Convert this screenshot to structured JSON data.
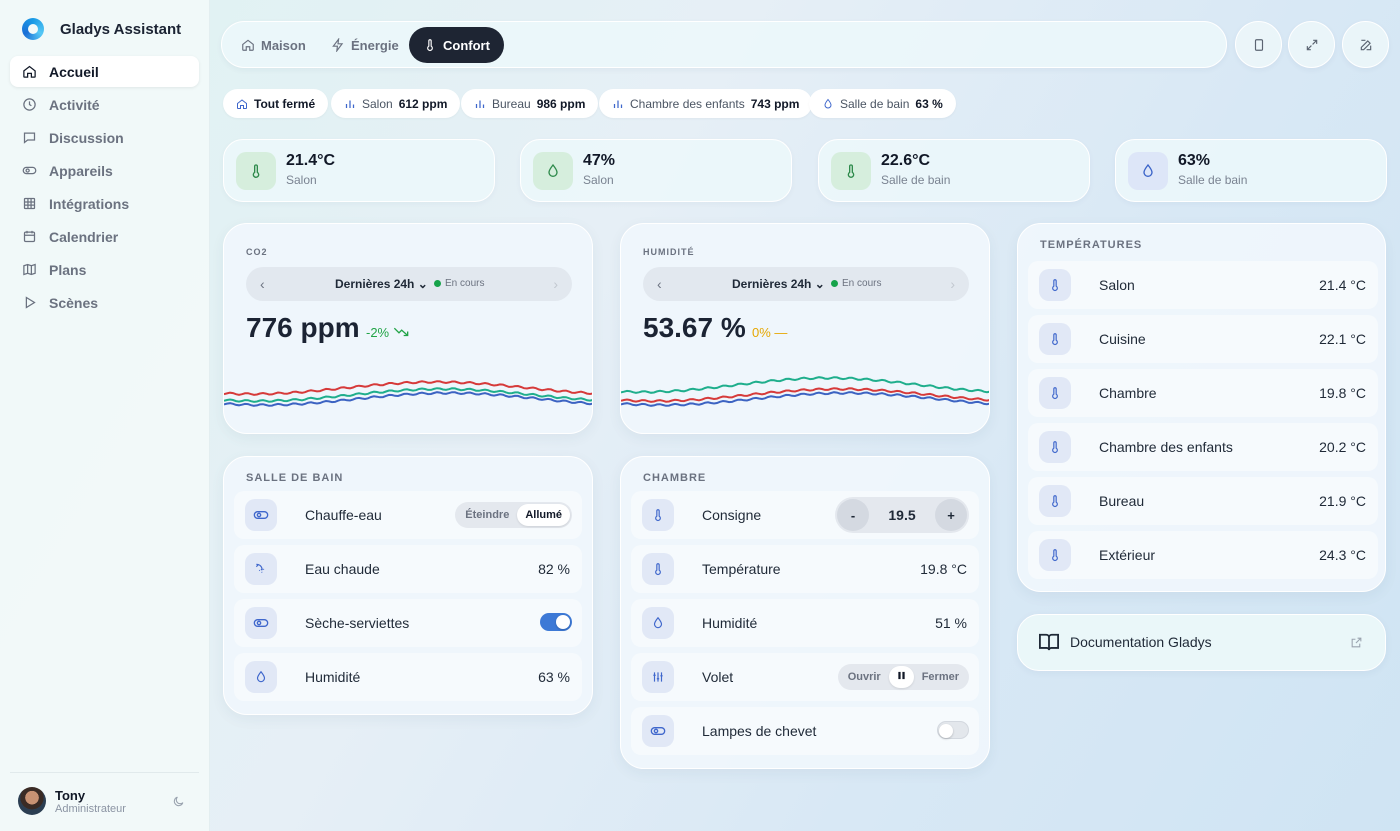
{
  "app": {
    "name": "Gladys Assistant"
  },
  "sidebar": {
    "items": [
      {
        "label": "Accueil",
        "icon": "home-icon",
        "active": true
      },
      {
        "label": "Activité",
        "icon": "clock-icon"
      },
      {
        "label": "Discussion",
        "icon": "chat-icon"
      },
      {
        "label": "Appareils",
        "icon": "toggle-icon"
      },
      {
        "label": "Intégrations",
        "icon": "grid-icon"
      },
      {
        "label": "Calendrier",
        "icon": "calendar-icon"
      },
      {
        "label": "Plans",
        "icon": "map-icon"
      },
      {
        "label": "Scènes",
        "icon": "play-icon"
      }
    ],
    "user": {
      "name": "Tony",
      "role": "Administrateur"
    }
  },
  "topbar": {
    "tabs": [
      {
        "label": "Maison",
        "icon": "home-icon"
      },
      {
        "label": "Énergie",
        "icon": "bolt-icon"
      },
      {
        "label": "Confort",
        "icon": "thermometer-icon",
        "active": true
      }
    ]
  },
  "chips": [
    {
      "label": "Tout fermé",
      "value": "",
      "icon": "home-icon"
    },
    {
      "label": "Salon",
      "value": "612 ppm",
      "icon": "bar-chart-icon"
    },
    {
      "label": "Bureau",
      "value": "986 ppm",
      "icon": "bar-chart-icon"
    },
    {
      "label": "Chambre des enfants",
      "value": "743 ppm",
      "icon": "bar-chart-icon"
    },
    {
      "label": "Salle de bain",
      "value": "63 %",
      "icon": "droplet-icon"
    }
  ],
  "stats": [
    {
      "value": "21.4°C",
      "label": "Salon",
      "icon": "thermometer-icon",
      "tone": "green"
    },
    {
      "value": "47%",
      "label": "Salon",
      "icon": "droplet-icon",
      "tone": "green"
    },
    {
      "value": "22.6°C",
      "label": "Salle de bain",
      "icon": "thermometer-icon",
      "tone": "green"
    },
    {
      "value": "63%",
      "label": "Salle de bain",
      "icon": "droplet-icon",
      "tone": "blue"
    }
  ],
  "co2": {
    "title": "CO2",
    "period": "Dernières 24h",
    "status": "En cours",
    "value": "776 ppm",
    "trend": "-2%",
    "trend_color": "#22a447"
  },
  "humidity": {
    "title": "Humidité",
    "period": "Dernières 24h",
    "status": "En cours",
    "value": "53.67 %",
    "trend": "0%",
    "trend_color": "#e6a700"
  },
  "chart_colors": {
    "red": "#d63a3a",
    "green": "#1fae8c",
    "blue": "#3c63c2"
  },
  "bathroom": {
    "title": "Salle de bain",
    "rows": [
      {
        "label": "Chauffe-eau",
        "icon": "toggle-icon",
        "control": "segment",
        "options": [
          "Éteindre",
          "Allumé"
        ],
        "selected": "Allumé"
      },
      {
        "label": "Eau chaude",
        "icon": "shower-icon",
        "value": "82 %"
      },
      {
        "label": "Sèche-serviettes",
        "icon": "toggle-icon",
        "control": "toggle",
        "on": true
      },
      {
        "label": "Humidité",
        "icon": "droplet-icon",
        "value": "63 %"
      }
    ]
  },
  "bedroom": {
    "title": "Chambre",
    "rows": [
      {
        "label": "Consigne",
        "icon": "thermometer-icon",
        "control": "stepper",
        "value": "19.5",
        "minus": "-",
        "plus": "+"
      },
      {
        "label": "Température",
        "icon": "thermometer-icon",
        "value": "19.8 °C"
      },
      {
        "label": "Humidité",
        "icon": "droplet-icon",
        "value": "51 %"
      },
      {
        "label": "Volet",
        "icon": "sliders-icon",
        "control": "shutter",
        "open": "Ouvrir",
        "close": "Fermer"
      },
      {
        "label": "Lampes de chevet",
        "icon": "toggle-icon",
        "control": "toggle",
        "on": false
      }
    ]
  },
  "temperatures": {
    "title": "Températures",
    "rows": [
      {
        "label": "Salon",
        "value": "21.4 °C"
      },
      {
        "label": "Cuisine",
        "value": "22.1 °C"
      },
      {
        "label": "Chambre",
        "value": "19.8 °C"
      },
      {
        "label": "Chambre des enfants",
        "value": "20.2 °C"
      },
      {
        "label": "Bureau",
        "value": "21.9 °C"
      },
      {
        "label": "Extérieur",
        "value": "24.3 °C"
      }
    ]
  },
  "documentation": {
    "label": "Documentation Gladys",
    "icon": "book-icon"
  }
}
